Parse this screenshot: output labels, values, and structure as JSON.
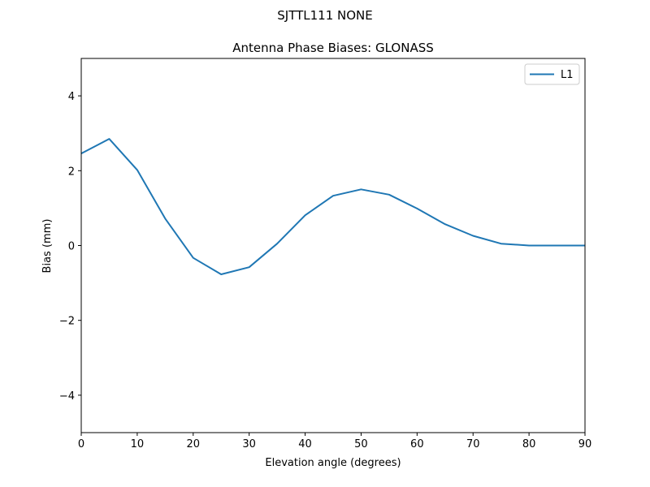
{
  "suptitle": "SJTTL111        NONE",
  "chart_data": {
    "type": "line",
    "title": "Antenna Phase Biases: GLONASS",
    "xlabel": "Elevation angle (degrees)",
    "ylabel": "Bias (mm)",
    "xlim": [
      0,
      90
    ],
    "ylim": [
      -5,
      5
    ],
    "xticks": [
      0,
      10,
      20,
      30,
      40,
      50,
      60,
      70,
      80,
      90
    ],
    "yticks": [
      -4,
      -2,
      0,
      2,
      4
    ],
    "ytick_labels": [
      "−4",
      "−2",
      "0",
      "2",
      "4"
    ],
    "grid": false,
    "legend": "top-right",
    "series": [
      {
        "name": "L1",
        "color": "#1f77b4",
        "x": [
          0,
          5,
          10,
          15,
          20,
          25,
          30,
          35,
          40,
          45,
          50,
          55,
          60,
          65,
          70,
          75,
          80,
          85,
          90
        ],
        "y": [
          2.46,
          2.85,
          2.02,
          0.72,
          -0.33,
          -0.77,
          -0.58,
          0.05,
          0.81,
          1.33,
          1.5,
          1.36,
          0.99,
          0.57,
          0.26,
          0.05,
          0.0,
          0.0,
          0.0
        ]
      }
    ]
  }
}
